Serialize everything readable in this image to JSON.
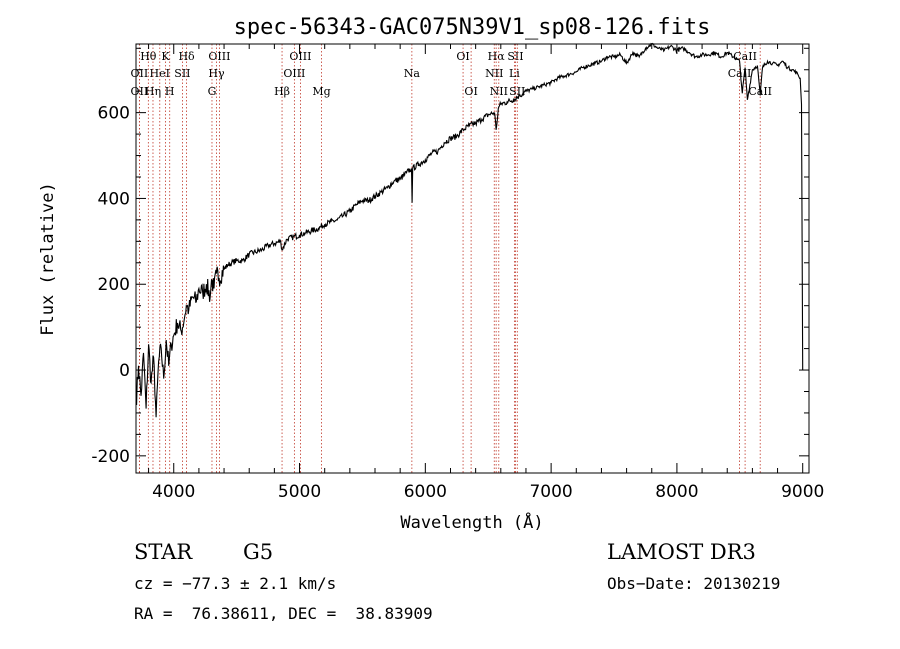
{
  "chart_data": {
    "type": "line",
    "title": "spec-56343-GAC075N39V1_sp08-126.fits",
    "xlabel": "Wavelength (Å)",
    "ylabel": "Flux (relative)",
    "xlim": [
      3700,
      9050
    ],
    "ylim": [
      -240,
      760
    ],
    "xticks": [
      4000,
      5000,
      6000,
      7000,
      8000,
      9000
    ],
    "yticks": [
      -200,
      0,
      200,
      400,
      600
    ],
    "series": [
      {
        "name": "spectrum",
        "x": [
          3700,
          3720,
          3740,
          3760,
          3780,
          3800,
          3820,
          3840,
          3860,
          3880,
          3900,
          3920,
          3940,
          3960,
          3980,
          4000,
          4030,
          4060,
          4090,
          4100,
          4120,
          4150,
          4180,
          4200,
          4230,
          4260,
          4290,
          4300,
          4320,
          4340,
          4360,
          4400,
          4430,
          4460,
          4500,
          4550,
          4600,
          4650,
          4700,
          4750,
          4800,
          4850,
          4861,
          4900,
          4950,
          5000,
          5050,
          5100,
          5150,
          5200,
          5250,
          5300,
          5350,
          5400,
          5450,
          5500,
          5550,
          5600,
          5650,
          5700,
          5750,
          5800,
          5850,
          5890,
          5895,
          5900,
          5950,
          6000,
          6050,
          6100,
          6150,
          6200,
          6250,
          6300,
          6350,
          6400,
          6450,
          6500,
          6550,
          6563,
          6580,
          6600,
          6650,
          6700,
          6750,
          6800,
          6850,
          6900,
          6950,
          7000,
          7050,
          7100,
          7150,
          7200,
          7250,
          7300,
          7350,
          7400,
          7450,
          7500,
          7550,
          7600,
          7650,
          7700,
          7750,
          7800,
          7850,
          7900,
          7950,
          8000,
          8050,
          8100,
          8150,
          8200,
          8250,
          8300,
          8350,
          8400,
          8450,
          8498,
          8520,
          8542,
          8560,
          8600,
          8640,
          8662,
          8680,
          8720,
          8760,
          8800,
          8840,
          8880,
          8920,
          8960,
          8980,
          8990,
          9000
        ],
        "values": [
          -80,
          10,
          -60,
          40,
          -90,
          60,
          -30,
          30,
          -110,
          20,
          50,
          -20,
          70,
          10,
          60,
          80,
          110,
          90,
          130,
          150,
          140,
          170,
          160,
          190,
          180,
          200,
          170,
          210,
          190,
          225,
          215,
          235,
          245,
          250,
          255,
          255,
          270,
          275,
          280,
          290,
          295,
          300,
          280,
          305,
          310,
          315,
          320,
          325,
          330,
          340,
          345,
          350,
          360,
          370,
          385,
          395,
          395,
          405,
          415,
          425,
          440,
          445,
          460,
          470,
          390,
          470,
          480,
          490,
          505,
          510,
          530,
          540,
          545,
          560,
          570,
          575,
          585,
          595,
          600,
          560,
          610,
          620,
          625,
          630,
          640,
          650,
          655,
          660,
          665,
          670,
          680,
          685,
          690,
          695,
          705,
          710,
          715,
          720,
          730,
          730,
          735,
          715,
          740,
          730,
          750,
          760,
          750,
          745,
          755,
          745,
          750,
          740,
          730,
          735,
          735,
          740,
          730,
          740,
          730,
          720,
          645,
          705,
          630,
          700,
          710,
          640,
          705,
          720,
          715,
          710,
          720,
          705,
          700,
          690,
          680,
          620,
          0
        ]
      }
    ],
    "spectral_lines": [
      {
        "label": "Hθ",
        "x": 3798,
        "row": 0
      },
      {
        "label": "K",
        "x": 3934,
        "row": 0
      },
      {
        "label": "Hδ",
        "x": 4102,
        "row": 0
      },
      {
        "label": "OIII",
        "x": 4363,
        "row": 0
      },
      {
        "label": "OIII",
        "x": 5007,
        "row": 0
      },
      {
        "label": "OI",
        "x": 6300,
        "row": 0
      },
      {
        "label": "Hα",
        "x": 6563,
        "row": 0
      },
      {
        "label": "SII",
        "x": 6717,
        "row": 0
      },
      {
        "label": "CaII",
        "x": 8542,
        "row": 0
      },
      {
        "label": "OII",
        "x": 3727,
        "row": 1
      },
      {
        "label": "HeI",
        "x": 3889,
        "row": 1
      },
      {
        "label": "SII",
        "x": 4069,
        "row": 1
      },
      {
        "label": "Hγ",
        "x": 4340,
        "row": 1
      },
      {
        "label": "OIII",
        "x": 4959,
        "row": 1
      },
      {
        "label": "Na",
        "x": 5893,
        "row": 1
      },
      {
        "label": "NII",
        "x": 6548,
        "row": 1
      },
      {
        "label": "Li",
        "x": 6708,
        "row": 1
      },
      {
        "label": "CaII",
        "x": 8498,
        "row": 1
      },
      {
        "label": "OII",
        "x": 3727,
        "row": 2
      },
      {
        "label": "Hη",
        "x": 3835,
        "row": 2
      },
      {
        "label": "H",
        "x": 3968,
        "row": 2
      },
      {
        "label": "G",
        "x": 4304,
        "row": 2
      },
      {
        "label": "Hβ",
        "x": 4861,
        "row": 2
      },
      {
        "label": "Mg",
        "x": 5175,
        "row": 2
      },
      {
        "label": "OI",
        "x": 6364,
        "row": 2
      },
      {
        "label": "NII",
        "x": 6584,
        "row": 2
      },
      {
        "label": "SII",
        "x": 6731,
        "row": 2
      },
      {
        "label": "CaII",
        "x": 8662,
        "row": 2
      }
    ]
  },
  "info": {
    "object_class": "STAR",
    "subclass": "G5",
    "survey": "LAMOST DR3",
    "redshift": "cz = −77.3 ± 2.1 km/s",
    "obs_date": "Obs−Date: 20130219",
    "coords": "RA =  76.38611, DEC =  38.83909"
  }
}
